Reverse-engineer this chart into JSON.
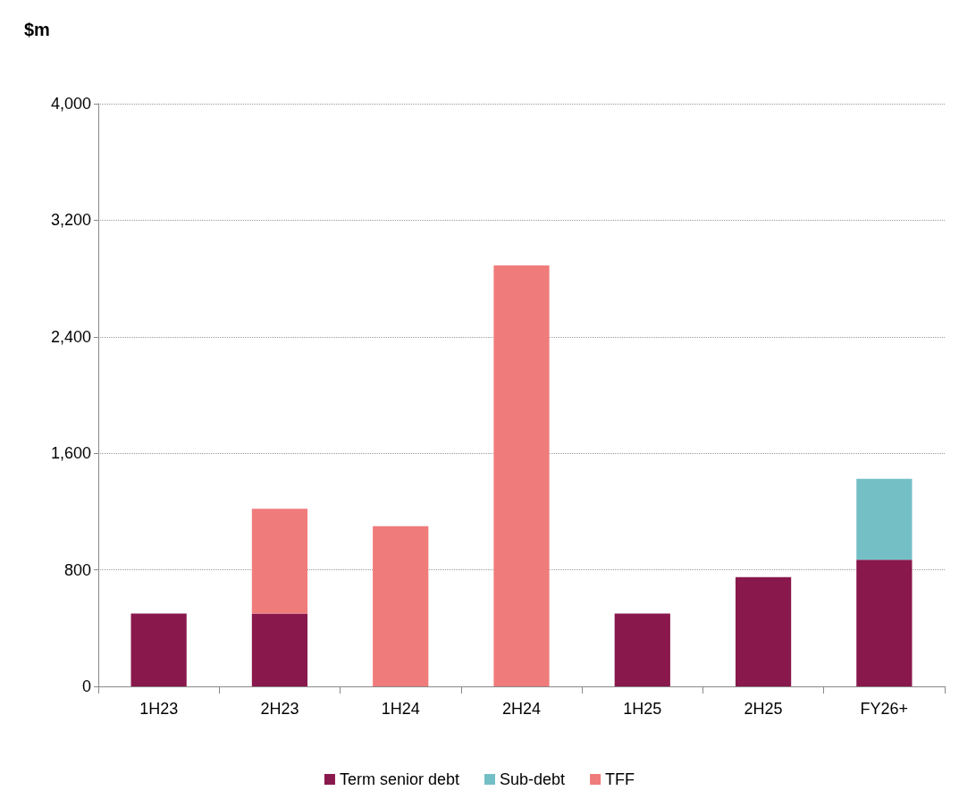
{
  "chart_data": {
    "type": "bar",
    "ylabel": "$m",
    "stacked": true,
    "categories": [
      "1H23",
      "2H23",
      "1H24",
      "2H24",
      "1H25",
      "2H25",
      "FY26+"
    ],
    "series": [
      {
        "name": "Term senior debt",
        "color": "#89184d",
        "values": [
          500,
          500,
          0,
          0,
          500,
          750,
          870
        ]
      },
      {
        "name": "Sub-debt",
        "color": "#74bfc6",
        "values": [
          0,
          0,
          0,
          0,
          0,
          0,
          555
        ]
      },
      {
        "name": "TFF",
        "color": "#f07b7b",
        "values": [
          0,
          720,
          1100,
          2890,
          0,
          0,
          0
        ]
      }
    ],
    "ylim": [
      0,
      4000
    ],
    "yticks": [
      0,
      800,
      {
        "value": 1600,
        "label": "1,600"
      },
      {
        "value": 2400,
        "label": "2,400"
      },
      {
        "value": 3200,
        "label": "3,200"
      },
      {
        "value": 4000,
        "label": "4,000"
      }
    ],
    "grid": "y",
    "legend": "bottom"
  }
}
